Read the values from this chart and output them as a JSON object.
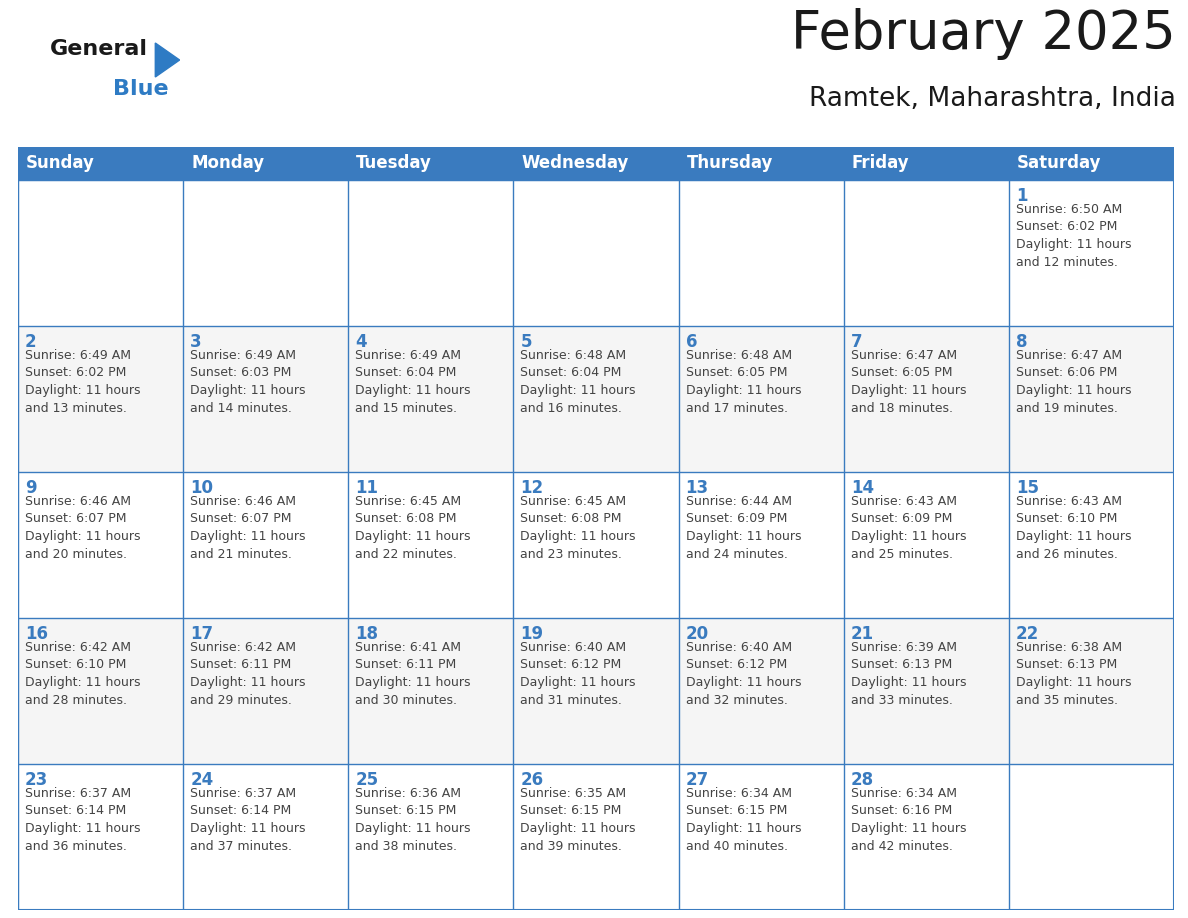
{
  "title": "February 2025",
  "subtitle": "Ramtek, Maharashtra, India",
  "header_color": "#3a7bbf",
  "header_text_color": "#ffffff",
  "cell_border_color": "#3a7bbf",
  "day_number_color": "#3a7bbf",
  "text_color": "#444444",
  "bg_color": "#ffffff",
  "days_of_week": [
    "Sunday",
    "Monday",
    "Tuesday",
    "Wednesday",
    "Thursday",
    "Friday",
    "Saturday"
  ],
  "weeks": [
    [
      {
        "day": null,
        "info": null
      },
      {
        "day": null,
        "info": null
      },
      {
        "day": null,
        "info": null
      },
      {
        "day": null,
        "info": null
      },
      {
        "day": null,
        "info": null
      },
      {
        "day": null,
        "info": null
      },
      {
        "day": 1,
        "info": "Sunrise: 6:50 AM\nSunset: 6:02 PM\nDaylight: 11 hours\nand 12 minutes."
      }
    ],
    [
      {
        "day": 2,
        "info": "Sunrise: 6:49 AM\nSunset: 6:02 PM\nDaylight: 11 hours\nand 13 minutes."
      },
      {
        "day": 3,
        "info": "Sunrise: 6:49 AM\nSunset: 6:03 PM\nDaylight: 11 hours\nand 14 minutes."
      },
      {
        "day": 4,
        "info": "Sunrise: 6:49 AM\nSunset: 6:04 PM\nDaylight: 11 hours\nand 15 minutes."
      },
      {
        "day": 5,
        "info": "Sunrise: 6:48 AM\nSunset: 6:04 PM\nDaylight: 11 hours\nand 16 minutes."
      },
      {
        "day": 6,
        "info": "Sunrise: 6:48 AM\nSunset: 6:05 PM\nDaylight: 11 hours\nand 17 minutes."
      },
      {
        "day": 7,
        "info": "Sunrise: 6:47 AM\nSunset: 6:05 PM\nDaylight: 11 hours\nand 18 minutes."
      },
      {
        "day": 8,
        "info": "Sunrise: 6:47 AM\nSunset: 6:06 PM\nDaylight: 11 hours\nand 19 minutes."
      }
    ],
    [
      {
        "day": 9,
        "info": "Sunrise: 6:46 AM\nSunset: 6:07 PM\nDaylight: 11 hours\nand 20 minutes."
      },
      {
        "day": 10,
        "info": "Sunrise: 6:46 AM\nSunset: 6:07 PM\nDaylight: 11 hours\nand 21 minutes."
      },
      {
        "day": 11,
        "info": "Sunrise: 6:45 AM\nSunset: 6:08 PM\nDaylight: 11 hours\nand 22 minutes."
      },
      {
        "day": 12,
        "info": "Sunrise: 6:45 AM\nSunset: 6:08 PM\nDaylight: 11 hours\nand 23 minutes."
      },
      {
        "day": 13,
        "info": "Sunrise: 6:44 AM\nSunset: 6:09 PM\nDaylight: 11 hours\nand 24 minutes."
      },
      {
        "day": 14,
        "info": "Sunrise: 6:43 AM\nSunset: 6:09 PM\nDaylight: 11 hours\nand 25 minutes."
      },
      {
        "day": 15,
        "info": "Sunrise: 6:43 AM\nSunset: 6:10 PM\nDaylight: 11 hours\nand 26 minutes."
      }
    ],
    [
      {
        "day": 16,
        "info": "Sunrise: 6:42 AM\nSunset: 6:10 PM\nDaylight: 11 hours\nand 28 minutes."
      },
      {
        "day": 17,
        "info": "Sunrise: 6:42 AM\nSunset: 6:11 PM\nDaylight: 11 hours\nand 29 minutes."
      },
      {
        "day": 18,
        "info": "Sunrise: 6:41 AM\nSunset: 6:11 PM\nDaylight: 11 hours\nand 30 minutes."
      },
      {
        "day": 19,
        "info": "Sunrise: 6:40 AM\nSunset: 6:12 PM\nDaylight: 11 hours\nand 31 minutes."
      },
      {
        "day": 20,
        "info": "Sunrise: 6:40 AM\nSunset: 6:12 PM\nDaylight: 11 hours\nand 32 minutes."
      },
      {
        "day": 21,
        "info": "Sunrise: 6:39 AM\nSunset: 6:13 PM\nDaylight: 11 hours\nand 33 minutes."
      },
      {
        "day": 22,
        "info": "Sunrise: 6:38 AM\nSunset: 6:13 PM\nDaylight: 11 hours\nand 35 minutes."
      }
    ],
    [
      {
        "day": 23,
        "info": "Sunrise: 6:37 AM\nSunset: 6:14 PM\nDaylight: 11 hours\nand 36 minutes."
      },
      {
        "day": 24,
        "info": "Sunrise: 6:37 AM\nSunset: 6:14 PM\nDaylight: 11 hours\nand 37 minutes."
      },
      {
        "day": 25,
        "info": "Sunrise: 6:36 AM\nSunset: 6:15 PM\nDaylight: 11 hours\nand 38 minutes."
      },
      {
        "day": 26,
        "info": "Sunrise: 6:35 AM\nSunset: 6:15 PM\nDaylight: 11 hours\nand 39 minutes."
      },
      {
        "day": 27,
        "info": "Sunrise: 6:34 AM\nSunset: 6:15 PM\nDaylight: 11 hours\nand 40 minutes."
      },
      {
        "day": 28,
        "info": "Sunrise: 6:34 AM\nSunset: 6:16 PM\nDaylight: 11 hours\nand 42 minutes."
      },
      {
        "day": null,
        "info": null
      }
    ]
  ],
  "logo_general_color": "#1a1a1a",
  "logo_blue_color": "#2e7bc4",
  "title_fontsize": 38,
  "subtitle_fontsize": 19,
  "header_fontsize": 12,
  "day_number_fontsize": 12,
  "info_fontsize": 9
}
